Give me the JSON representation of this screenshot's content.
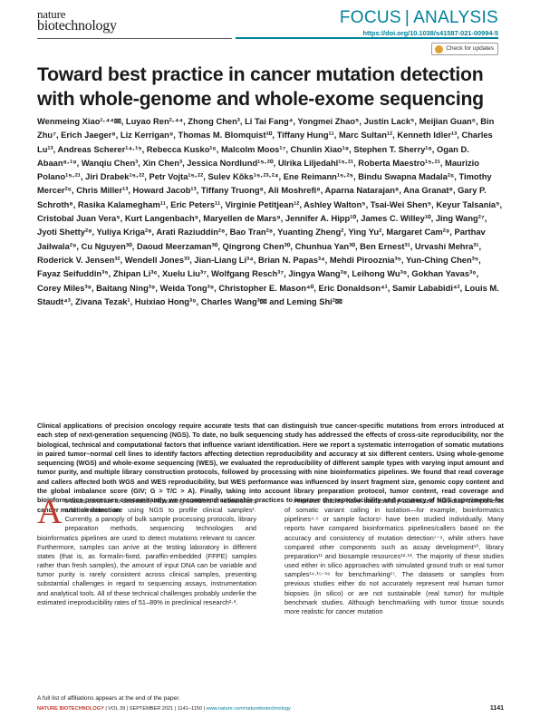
{
  "header": {
    "logo_line1": "nature",
    "logo_line2": "biotechnology",
    "section_focus": "FOCUS",
    "section_sep": "|",
    "section_type": "ANALYSIS",
    "doi": "https://doi.org/10.1038/s41587-021-00994-5",
    "check_updates_label": "Check for updates"
  },
  "article": {
    "title": "Toward best practice in cancer mutation detection with whole-genome and whole-exome sequencing",
    "authors": "Wenmeing Xiao¹·⁴⁴✉, Luyao Ren²·⁴⁴, Zhong Chen³, Li Tai Fang⁴, Yongmei Zhao⁵, Justin Lack⁵, Meijian Guan⁶, Bin Zhu⁷, Erich Jaeger⁸, Liz Kerrigan⁹, Thomas M. Blomquist¹⁰, Tiffany Hung¹¹, Marc Sultan¹², Kenneth Idler¹³, Charles Lu¹³, Andreas Scherer¹⁴·¹⁵, Rebecca Kusko¹⁶, Malcolm Moos¹⁷, Chunlin Xiao¹⁸, Stephen T. Sherry¹⁸, Ogan D. Abaan⁸·¹⁹, Wanqiu Chen³, Xin Chen³, Jessica Nordlund¹⁵·²⁰, Ulrika Liljedahl¹⁵·²¹, Roberta Maestro¹⁵·²¹, Maurizio Polano¹⁵·²¹, Jiri Drabek¹⁵·²², Petr Vojta¹⁵·²², Sulev Kõks¹⁵·²³·²⁴, Ene Reimann¹⁵·²⁵, Bindu Swapna Madala²⁶, Timothy Mercer²⁶, Chris Miller¹³, Howard Jacob¹³, Tiffany Truong⁸, Ali Moshrefi⁸, Aparna Natarajan⁸, Ana Granat⁸, Gary P. Schroth⁸, Rasika Kalamegham¹¹, Eric Peters¹¹, Virginie Petitjean¹², Ashley Walton⁵, Tsai-Wei Shen⁵, Keyur Talsania⁵, Cristobal Juan Vera⁵, Kurt Langenbach⁹, Maryellen de Mars⁹, Jennifer A. Hipp¹⁰, James C. Willey¹⁰, Jing Wang²⁷, Jyoti Shetty²⁸, Yuliya Kriga²⁸, Arati Raziuddin²⁸, Bao Tran²⁸, Yuanting Zheng², Ying Yu², Margaret Cam²⁹, Parthav Jailwala²⁹, Cu Nguyen³⁰, Daoud Meerzaman³⁰, Qingrong Chen³⁰, Chunhua Yan³⁰, Ben Ernest³¹, Urvashi Mehra³¹, Roderick V. Jensen³², Wendell Jones³³, Jian-Liang Li³⁴, Brian N. Papas³⁴, Mehdi Pirooznia³⁵, Yun-Ching Chen³⁵, Fayaz Seifuddin³⁵, Zhipan Li³⁶, Xuelu Liu³⁷, Wolfgang Resch³⁷, Jingya Wang³⁸, Leihong Wu³⁹, Gokhan Yavas³⁹, Corey Miles³⁹, Baitang Ning³⁹, Weida Tong³⁹, Christopher E. Mason⁴⁰, Eric Donaldson⁴¹, Samir Lababidi⁴², Louis M. Staudt⁴³, Zivana Tezak¹, Huixiao Hong³⁹, Charles Wang³✉ and Leming Shi²✉",
    "abstract": "Clinical applications of precision oncology require accurate tests that can distinguish true cancer-specific mutations from errors introduced at each step of next-generation sequencing (NGS). To date, no bulk sequencing study has addressed the effects of cross-site reproducibility, nor the biological, technical and computational factors that influence variant identification. Here we report a systematic interrogation of somatic mutations in paired tumor–normal cell lines to identify factors affecting detection reproducibility and accuracy at six different centers. Using whole-genome sequencing (WGS) and whole-exome sequencing (WES), we evaluated the reproducibility of different sample types with varying input amount and tumor purity, and multiple library construction protocols, followed by processing with nine bioinformatics pipelines. We found that read coverage and callers affected both WGS and WES reproducibility, but WES performance was influenced by insert fragment size, genomic copy content and the global imbalance score (GIV; G > T/C > A). Finally, taking into account library preparation protocol, tumor content, read coverage and bioinformatics processes concomitantly, we recommend actionable practices to improve the reproducibility and accuracy of NGS experiments for cancer mutation detection.",
    "col1_dropcap": "A",
    "col1_text": "s costs continue to decrease, increasing numbers of researchers and clinicians are using NGS to profile clinical samples¹. Currently, a panoply of bulk sample processing protocols, library preparation methods, sequencing technologies and bioinformatics pipelines are used to detect mutations relevant to cancer. Furthermore, samples can arrive at the testing laboratory in different states (that is, as formalin-fixed, paraffin-embedded (FFPE) samples rather than fresh samples), the amount of input DNA can be variable and tumor purity is rarely consistent across clinical samples, presenting substantial challenges in regard to sequencing assays, instrumentation and analytical tools. All of these technical challenges probably underlie the estimated irreproducibility rates of 51–89% in preclinical research²·³.",
    "col2_text": "Previous studies have successfully addressed individual components of somatic variant calling in isolation—for example, bioinformatics pipelines⁴·⁵ or sample factors⁶ have been studied individually. Many reports have compared bioinformatics pipelines/callers based on the accuracy and consistency of mutation detection⁷⁻⁹, while others have compared other components such as assay development¹⁰, library preparation¹¹ and biosample resources¹²·¹³. The majority of these studies used either in silico approaches with simulated ground truth or real tumor samples¹⁴·¹⁵⁻¹⁶ for benchmarking¹⁷. The datasets or samples from previous studies either do not accurately represent real human tumor biopsies (in silico) or are not sustainable (real tumor) for multiple benchmark studies. Although benchmarking with tumor tissue sounds more realistic for cancer mutation",
    "affiliation_note": "A full list of affiliations appears at the end of the paper."
  },
  "footer": {
    "journal": "NATURE BIOTECHNOLOGY",
    "issue": " | VOL 39 | SEPTEMBER 2021 | 1141–1150 | ",
    "url": "www.nature.com/naturebiotechnology",
    "page": "1141"
  }
}
